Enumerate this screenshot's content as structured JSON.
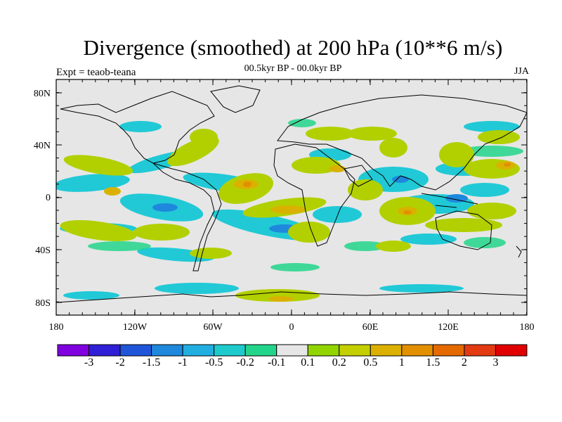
{
  "title": "Divergence (smoothed) at 200 hPa (10**6 m/s)",
  "experiment": "Expt = teaob-teana",
  "period": "00.5kyr BP - 00.0kyr BP",
  "season": "JJA",
  "axes": {
    "lat_labels": [
      "80N",
      "40N",
      "0",
      "40S",
      "80S"
    ],
    "lon_labels": [
      "180",
      "120W",
      "60W",
      "0",
      "60E",
      "120E",
      "180"
    ]
  },
  "colorbar": {
    "colors": [
      "#8000e0",
      "#2f1fd6",
      "#1f55d9",
      "#1e88dc",
      "#21aee0",
      "#1ecbcc",
      "#22d58a",
      "#e6e6e6",
      "#92d400",
      "#c4cf00",
      "#dbb000",
      "#e29000",
      "#e46a00",
      "#e33a12",
      "#e00000"
    ],
    "labels": [
      "-3",
      "-2",
      "-1.5",
      "-1",
      "-0.5",
      "-0.2",
      "-0.1",
      "0.1",
      "0.2",
      "0.5",
      "1",
      "1.5",
      "2",
      "3"
    ]
  }
}
